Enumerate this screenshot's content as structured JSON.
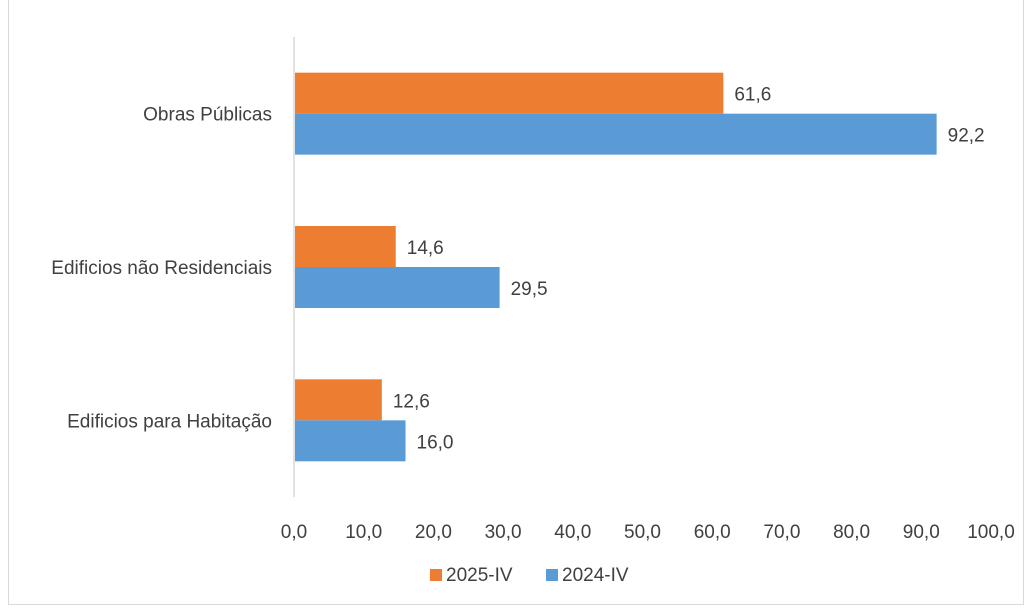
{
  "chart_data": {
    "type": "bar",
    "orientation": "horizontal",
    "title": "",
    "categories": [
      "Edificios para Habitação",
      "Edificios não Residenciais",
      "Obras Públicas"
    ],
    "series": [
      {
        "name": "2025-IV",
        "color": "#ED7D31",
        "values": [
          12.6,
          14.6,
          61.6
        ],
        "labels": [
          "12,6",
          "14,6",
          "61,6"
        ]
      },
      {
        "name": "2024-IV",
        "color": "#5B9BD5",
        "values": [
          16.0,
          29.5,
          92.2
        ],
        "labels": [
          "16,0",
          "29,5",
          "92,2"
        ]
      }
    ],
    "xlim": [
      0,
      100
    ],
    "xticks": [
      "0,0",
      "10,0",
      "20,0",
      "30,0",
      "40,0",
      "50,0",
      "60,0",
      "70,0",
      "80,0",
      "90,0",
      "100,0"
    ],
    "xlabel": "",
    "ylabel": "",
    "grid": false,
    "legend_position": "bottom"
  }
}
